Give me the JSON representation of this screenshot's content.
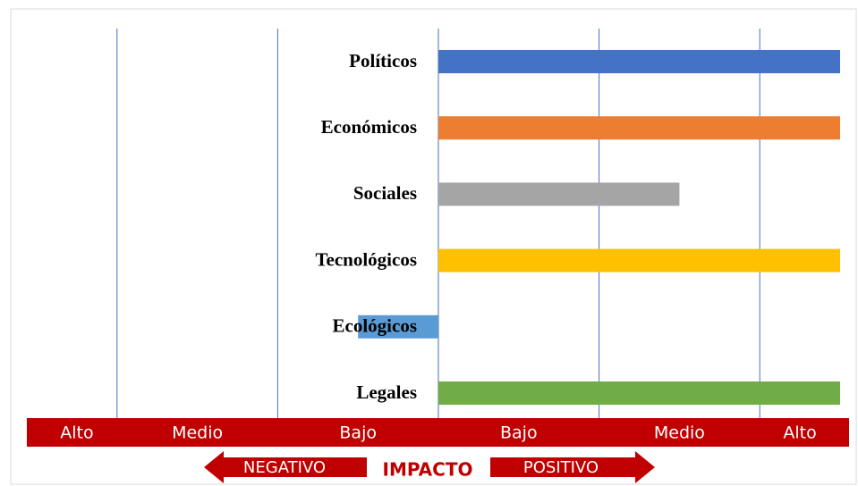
{
  "chart_data": {
    "type": "bar",
    "orientation": "horizontal",
    "categories": [
      "Políticos",
      "Económicos",
      "Sociales",
      "Tecnológicos",
      "Ecológicos",
      "Legales"
    ],
    "values": [
      2.5,
      2.5,
      1.5,
      2.5,
      -0.5,
      2.5
    ],
    "colors": [
      "#4472c4",
      "#ed7d31",
      "#a5a5a5",
      "#ffc000",
      "#5b9bd5",
      "#70ad47"
    ],
    "xlim": [
      -2.5,
      2.5
    ],
    "xticks": [
      -2,
      -1,
      0,
      1,
      2
    ],
    "grid": true,
    "band_labels": [
      "Alto",
      "Medio",
      "Bajo",
      "Bajo",
      "Medio",
      "Alto"
    ],
    "axis_title": "IMPACTO",
    "negative_label": "NEGATIVO",
    "positive_label": "POSITIVO"
  }
}
